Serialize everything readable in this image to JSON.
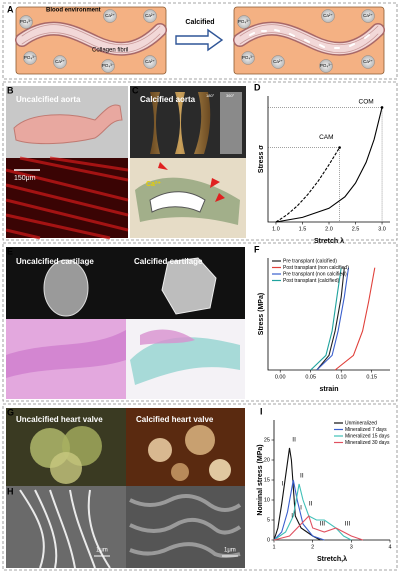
{
  "panels": {
    "A": {
      "label": "A",
      "blood": "Blood environment",
      "collagen": "Collagen fibril",
      "arrow": "Calcified",
      "ions_left": [
        "Ca²⁺",
        "PO₄³⁻",
        "Ca²⁺",
        "PO₄³⁻",
        "Ca²⁺",
        "PO₄³⁻",
        "Ca²⁺"
      ],
      "ions_right": [
        "Ca²⁺",
        "PO₄³⁻",
        "Ca²⁺",
        "PO₄³⁻",
        "Ca²⁺",
        "PO₄³⁻",
        "Ca²⁺"
      ]
    },
    "B": {
      "label": "B",
      "title": "Uncalcified aorta",
      "scale": "150μm"
    },
    "C": {
      "label": "C",
      "title": "Calcified aorta",
      "angles": [
        "180°",
        "360°"
      ],
      "ion": "Ca²⁺"
    },
    "E": {
      "label": "E",
      "left": "Uncalcified cartilage",
      "right": "Calcified cartilage"
    },
    "G": {
      "label": "G",
      "left": "Uncalcified heart valve",
      "right": "Calcified heart valve"
    },
    "H": {
      "label": "H",
      "scale_left": "1μm",
      "scale_right": "1μm"
    }
  },
  "chart_data": [
    {
      "type": "line",
      "panel_label": "D",
      "x_label": "Stretch λ",
      "y_label": "Stress σ",
      "xlim": [
        0.85,
        3.15
      ],
      "ylim": [
        0,
        1.1
      ],
      "xticks": [
        {
          "value": 1.0,
          "label": "1.0"
        },
        {
          "value": 1.5,
          "label": "1.5"
        },
        {
          "value": 2.0,
          "label": "2.0"
        },
        {
          "value": 2.5,
          "label": "2.5"
        },
        {
          "value": 3.0,
          "label": "3.0"
        }
      ],
      "ref_lines": true,
      "annotations": [
        "CAM",
        "COM"
      ],
      "series": [
        {
          "name": "CAM",
          "color": "#000000",
          "dash": true,
          "x": [
            1.0,
            1.2,
            1.4,
            1.6,
            1.8,
            2.0,
            2.2
          ],
          "values": [
            0,
            0.06,
            0.14,
            0.24,
            0.36,
            0.5,
            0.65
          ]
        },
        {
          "name": "COM",
          "color": "#000000",
          "dash": false,
          "x": [
            1.0,
            1.5,
            2.0,
            2.3,
            2.5,
            2.7,
            2.85,
            3.0
          ],
          "values": [
            0,
            0.04,
            0.12,
            0.22,
            0.34,
            0.52,
            0.72,
            1.0
          ]
        }
      ]
    },
    {
      "type": "line",
      "panel_label": "F",
      "x_label": "strain",
      "y_label": "Stress (MPa)",
      "xlim": [
        -0.02,
        0.18
      ],
      "ylim": [
        0,
        2.3
      ],
      "legend": "upper left",
      "xticks": [
        {
          "value": 0,
          "label": "0.00"
        },
        {
          "value": 0.05,
          "label": "0.05"
        },
        {
          "value": 0.1,
          "label": "0.10"
        },
        {
          "value": 0.15,
          "label": "0.15"
        }
      ],
      "series": [
        {
          "name": "Pre transplant (calcified)",
          "color": "#222222",
          "x": [
            0.06,
            0.08,
            0.09,
            0.1,
            0.105
          ],
          "values": [
            0,
            0.3,
            0.8,
            1.5,
            2.1
          ]
        },
        {
          "name": "Post transplant (non calcified)",
          "color": "#e0403a",
          "x": [
            0.09,
            0.12,
            0.135,
            0.145,
            0.155
          ],
          "values": [
            0,
            0.3,
            0.8,
            1.4,
            2.1
          ]
        },
        {
          "name": "Pre transplant (non calcified)",
          "color": "#3a5fcd",
          "x": [
            0.06,
            0.085,
            0.095,
            0.105,
            0.112
          ],
          "values": [
            0,
            0.3,
            0.8,
            1.5,
            2.1
          ]
        },
        {
          "name": "Post transplant (calcified)",
          "color": "#20a39e",
          "x": [
            0.05,
            0.075,
            0.085,
            0.093,
            0.1
          ],
          "values": [
            0,
            0.3,
            0.8,
            1.5,
            2.1
          ]
        }
      ]
    },
    {
      "type": "line",
      "panel_label": "I",
      "x_label": "Stretch,λ",
      "y_label": "Nominal stress (MPa)",
      "xlim": [
        1,
        4
      ],
      "ylim": [
        0,
        30
      ],
      "legend": "upper right",
      "xticks": [
        1,
        2,
        3,
        4
      ],
      "yticks": [
        0,
        5,
        10,
        15,
        20,
        25
      ],
      "annotations": [
        "I",
        "II",
        "I",
        "II",
        "I",
        "II",
        "III",
        "III"
      ],
      "series": [
        {
          "name": "Unmineralized",
          "color": "#111111",
          "x": [
            1.0,
            1.1,
            1.2,
            1.3,
            1.4,
            1.45,
            1.55,
            1.7,
            2.0,
            2.2
          ],
          "values": [
            0,
            3,
            9,
            16,
            23,
            20,
            6,
            3,
            1,
            0
          ]
        },
        {
          "name": "Mineralized 7 days",
          "color": "#3a5fcd",
          "x": [
            1.0,
            1.2,
            1.35,
            1.5,
            1.6,
            1.75,
            2.0,
            2.3
          ],
          "values": [
            0,
            2,
            7,
            15,
            10,
            4,
            1,
            0
          ]
        },
        {
          "name": "Mineralized 15 days",
          "color": "#40c0b8",
          "x": [
            1.0,
            1.3,
            1.5,
            1.65,
            1.75,
            1.9,
            2.1,
            2.3,
            2.6,
            2.8,
            3.0
          ],
          "values": [
            0,
            2,
            6,
            14,
            10,
            6,
            5,
            5,
            3,
            1,
            0
          ]
        },
        {
          "name": "Mineralized 30 days",
          "color": "#e05060",
          "x": [
            1.0,
            1.4,
            1.7,
            1.9,
            2.0,
            2.3,
            2.6,
            2.8,
            3.0,
            3.3
          ],
          "values": [
            0,
            1,
            4,
            6,
            3,
            2,
            3,
            2,
            1,
            0
          ]
        }
      ]
    }
  ]
}
